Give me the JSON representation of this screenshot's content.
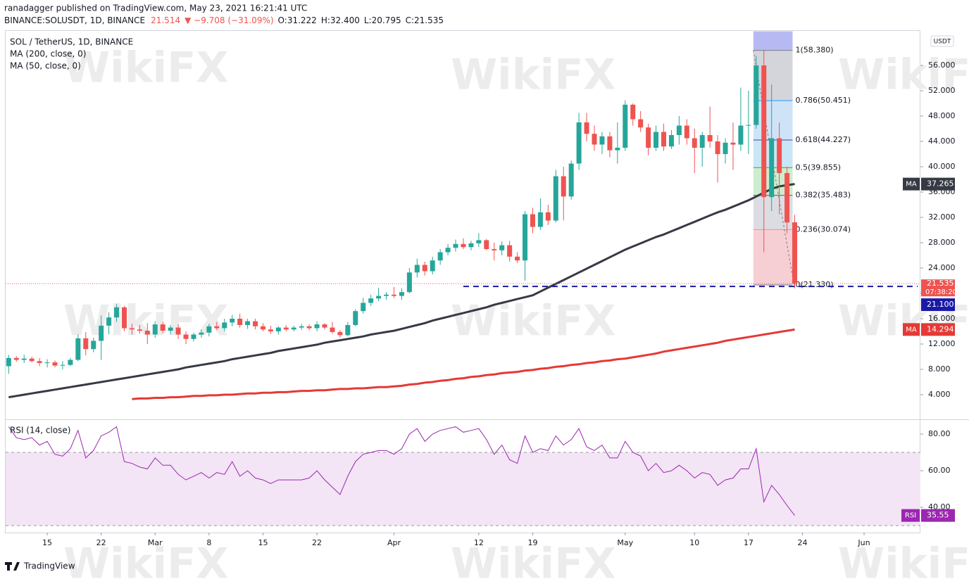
{
  "header": {
    "publisher": "ranadagger published on TradingView.com, May 23, 2021 16:21:41 UTC",
    "symbol": "BINANCE:SOLUSDT, 1D, BINANCE",
    "last": "21.514",
    "change": "▼ −9.708 (−31.09%)",
    "open": "O:31.222",
    "high": "H:32.400",
    "low": "L:20.795",
    "close": "C:21.535"
  },
  "watermark": "WikiFX",
  "logo": "TradingView",
  "chart_data": {
    "type": "candlestick",
    "title": "SOL / TetherUS, 1D, BINANCE",
    "currency": "USDT",
    "up_color": "#26a69a",
    "down_color": "#ef5350",
    "xlim": [
      "2021-02-09",
      "2021-06-08"
    ],
    "xticks": [
      {
        "value": "2021-02-15",
        "label": "15"
      },
      {
        "value": "2021-02-22",
        "label": "22"
      },
      {
        "value": "2021-03-01",
        "label": "Mar"
      },
      {
        "value": "2021-03-08",
        "label": "8"
      },
      {
        "value": "2021-03-15",
        "label": "15"
      },
      {
        "value": "2021-03-22",
        "label": "22"
      },
      {
        "value": "2021-04-01",
        "label": "Apr"
      },
      {
        "value": "2021-04-12",
        "label": "12"
      },
      {
        "value": "2021-04-19",
        "label": "19"
      },
      {
        "value": "2021-05-01",
        "label": "May"
      },
      {
        "value": "2021-05-10",
        "label": "10"
      },
      {
        "value": "2021-05-17",
        "label": "17"
      },
      {
        "value": "2021-05-24",
        "label": "24"
      },
      {
        "value": "2021-06-01",
        "label": "Jun"
      }
    ],
    "ylim": [
      0,
      61.5
    ],
    "yticks": [
      {
        "value": 4,
        "label": "4.000"
      },
      {
        "value": 8,
        "label": "8.000"
      },
      {
        "value": 12,
        "label": "12.000"
      },
      {
        "value": 16,
        "label": "16.000"
      },
      {
        "value": 20,
        "label": "20.000"
      },
      {
        "value": 24,
        "label": "24.000"
      },
      {
        "value": 28,
        "label": "28.000"
      },
      {
        "value": 32,
        "label": "32.000"
      },
      {
        "value": 36,
        "label": "36.000"
      },
      {
        "value": 40,
        "label": "40.000"
      },
      {
        "value": 44,
        "label": "44.000"
      },
      {
        "value": 48,
        "label": "48.000"
      },
      {
        "value": 52,
        "label": "52.000"
      },
      {
        "value": 56,
        "label": "56.000"
      }
    ],
    "x": [
      "2021-02-10",
      "2021-02-11",
      "2021-02-12",
      "2021-02-13",
      "2021-02-14",
      "2021-02-15",
      "2021-02-16",
      "2021-02-17",
      "2021-02-18",
      "2021-02-19",
      "2021-02-20",
      "2021-02-21",
      "2021-02-22",
      "2021-02-23",
      "2021-02-24",
      "2021-02-25",
      "2021-02-26",
      "2021-02-27",
      "2021-02-28",
      "2021-03-01",
      "2021-03-02",
      "2021-03-03",
      "2021-03-04",
      "2021-03-05",
      "2021-03-06",
      "2021-03-07",
      "2021-03-08",
      "2021-03-09",
      "2021-03-10",
      "2021-03-11",
      "2021-03-12",
      "2021-03-13",
      "2021-03-14",
      "2021-03-15",
      "2021-03-16",
      "2021-03-17",
      "2021-03-18",
      "2021-03-19",
      "2021-03-20",
      "2021-03-21",
      "2021-03-22",
      "2021-03-23",
      "2021-03-24",
      "2021-03-25",
      "2021-03-26",
      "2021-03-27",
      "2021-03-28",
      "2021-03-29",
      "2021-03-30",
      "2021-03-31",
      "2021-04-01",
      "2021-04-02",
      "2021-04-03",
      "2021-04-04",
      "2021-04-05",
      "2021-04-06",
      "2021-04-07",
      "2021-04-08",
      "2021-04-09",
      "2021-04-10",
      "2021-04-11",
      "2021-04-12",
      "2021-04-13",
      "2021-04-14",
      "2021-04-15",
      "2021-04-16",
      "2021-04-17",
      "2021-04-18",
      "2021-04-19",
      "2021-04-20",
      "2021-04-21",
      "2021-04-22",
      "2021-04-23",
      "2021-04-24",
      "2021-04-25",
      "2021-04-26",
      "2021-04-27",
      "2021-04-28",
      "2021-04-29",
      "2021-04-30",
      "2021-05-01",
      "2021-05-02",
      "2021-05-03",
      "2021-05-04",
      "2021-05-05",
      "2021-05-06",
      "2021-05-07",
      "2021-05-08",
      "2021-05-09",
      "2021-05-10",
      "2021-05-11",
      "2021-05-12",
      "2021-05-13",
      "2021-05-14",
      "2021-05-15",
      "2021-05-16",
      "2021-05-17",
      "2021-05-18",
      "2021-05-19",
      "2021-05-20",
      "2021-05-21",
      "2021-05-22",
      "2021-05-23"
    ],
    "candles": [
      [
        8.5,
        10.3,
        7.3,
        9.8
      ],
      [
        9.8,
        10.1,
        9.2,
        9.5
      ],
      [
        9.5,
        10.3,
        9.0,
        9.7
      ],
      [
        9.7,
        10.0,
        9.1,
        9.3
      ],
      [
        9.3,
        9.8,
        8.5,
        9.0
      ],
      [
        9.0,
        9.6,
        8.3,
        9.1
      ],
      [
        9.1,
        9.4,
        8.3,
        8.6
      ],
      [
        8.6,
        9.3,
        8.0,
        8.7
      ],
      [
        8.7,
        9.8,
        8.5,
        9.5
      ],
      [
        9.5,
        13.5,
        9.3,
        12.9
      ],
      [
        12.9,
        13.9,
        10.2,
        11.2
      ],
      [
        11.2,
        13.0,
        10.7,
        12.5
      ],
      [
        12.5,
        16.5,
        9.5,
        14.9
      ],
      [
        14.9,
        17.0,
        13.5,
        16.2
      ],
      [
        16.2,
        18.3,
        15.5,
        17.8
      ],
      [
        17.8,
        18.0,
        14.0,
        14.5
      ],
      [
        14.5,
        15.2,
        13.5,
        14.3
      ],
      [
        14.3,
        15.0,
        13.6,
        14.1
      ],
      [
        14.1,
        15.3,
        12.0,
        13.5
      ],
      [
        13.5,
        15.6,
        13.0,
        15.1
      ],
      [
        15.1,
        15.5,
        13.7,
        14.1
      ],
      [
        14.1,
        15.0,
        13.5,
        14.6
      ],
      [
        14.6,
        15.1,
        12.8,
        13.5
      ],
      [
        13.5,
        14.0,
        12.0,
        12.8
      ],
      [
        12.8,
        13.8,
        12.4,
        13.5
      ],
      [
        13.5,
        14.3,
        13.0,
        13.8
      ],
      [
        13.8,
        15.2,
        13.2,
        14.8
      ],
      [
        14.8,
        15.5,
        14.2,
        14.5
      ],
      [
        14.5,
        16.0,
        14.0,
        15.4
      ],
      [
        15.4,
        16.6,
        14.8,
        16.0
      ],
      [
        16.0,
        16.8,
        14.6,
        15.0
      ],
      [
        15.0,
        16.0,
        14.4,
        15.6
      ],
      [
        15.6,
        16.0,
        14.3,
        14.8
      ],
      [
        14.8,
        15.3,
        14.0,
        14.3
      ],
      [
        14.3,
        14.9,
        13.6,
        14.0
      ],
      [
        14.0,
        14.8,
        13.5,
        14.6
      ],
      [
        14.6,
        15.0,
        14.0,
        14.3
      ],
      [
        14.3,
        14.9,
        14.0,
        14.6
      ],
      [
        14.6,
        15.2,
        14.2,
        14.8
      ],
      [
        14.8,
        15.1,
        14.2,
        14.5
      ],
      [
        14.5,
        15.6,
        14.0,
        15.1
      ],
      [
        15.1,
        15.3,
        14.3,
        14.6
      ],
      [
        14.6,
        15.5,
        13.6,
        13.9
      ],
      [
        13.9,
        14.2,
        13.0,
        13.4
      ],
      [
        13.4,
        15.5,
        13.2,
        15.0
      ],
      [
        15.0,
        17.5,
        14.8,
        17.2
      ],
      [
        17.2,
        19.3,
        16.8,
        18.5
      ],
      [
        18.5,
        19.8,
        18.0,
        19.2
      ],
      [
        19.2,
        20.9,
        18.8,
        19.6
      ],
      [
        19.6,
        20.2,
        19.0,
        19.8
      ],
      [
        19.8,
        21.0,
        19.3,
        19.6
      ],
      [
        19.6,
        20.8,
        19.0,
        20.2
      ],
      [
        20.2,
        24.0,
        20.0,
        23.3
      ],
      [
        23.3,
        25.5,
        22.5,
        24.5
      ],
      [
        24.5,
        25.0,
        22.8,
        23.5
      ],
      [
        23.5,
        25.8,
        23.0,
        25.2
      ],
      [
        25.2,
        27.0,
        24.5,
        26.5
      ],
      [
        26.5,
        27.8,
        26.0,
        27.2
      ],
      [
        27.2,
        28.5,
        26.6,
        27.8
      ],
      [
        27.8,
        28.7,
        27.0,
        27.3
      ],
      [
        27.3,
        28.3,
        26.8,
        27.9
      ],
      [
        27.9,
        29.5,
        27.3,
        28.4
      ],
      [
        28.4,
        28.6,
        26.8,
        27.0
      ],
      [
        27.0,
        28.0,
        25.2,
        26.8
      ],
      [
        26.8,
        28.2,
        26.0,
        27.6
      ],
      [
        27.6,
        28.3,
        25.0,
        25.8
      ],
      [
        25.8,
        26.5,
        24.8,
        25.2
      ],
      [
        25.2,
        33.0,
        22.0,
        32.5
      ],
      [
        32.5,
        33.5,
        29.5,
        30.5
      ],
      [
        30.5,
        35.0,
        30.0,
        32.8
      ],
      [
        32.8,
        34.0,
        30.8,
        31.5
      ],
      [
        31.5,
        39.5,
        31.2,
        38.5
      ],
      [
        38.5,
        40.0,
        31.5,
        35.3
      ],
      [
        35.3,
        41.0,
        34.8,
        40.5
      ],
      [
        40.5,
        48.5,
        39.5,
        47.0
      ],
      [
        47.0,
        48.5,
        44.0,
        45.2
      ],
      [
        45.2,
        46.5,
        42.5,
        43.5
      ],
      [
        43.5,
        45.5,
        42.0,
        44.8
      ],
      [
        44.8,
        45.5,
        41.5,
        42.6
      ],
      [
        42.6,
        47.0,
        40.5,
        43.0
      ],
      [
        43.0,
        50.5,
        42.5,
        49.8
      ],
      [
        49.8,
        50.0,
        46.5,
        47.5
      ],
      [
        47.5,
        48.8,
        45.5,
        46.2
      ],
      [
        46.2,
        46.8,
        41.8,
        43.0
      ],
      [
        43.0,
        46.5,
        42.5,
        45.5
      ],
      [
        45.5,
        46.8,
        42.5,
        43.2
      ],
      [
        43.2,
        45.8,
        42.8,
        45.0
      ],
      [
        45.0,
        48.0,
        43.5,
        46.5
      ],
      [
        46.5,
        47.5,
        43.5,
        44.5
      ],
      [
        44.5,
        46.0,
        39.0,
        43.0
      ],
      [
        43.0,
        45.5,
        40.0,
        45.0
      ],
      [
        45.0,
        49.5,
        43.0,
        44.0
      ],
      [
        44.0,
        45.0,
        37.5,
        42.0
      ],
      [
        42.0,
        44.5,
        40.5,
        43.8
      ],
      [
        43.8,
        47.0,
        39.5,
        43.5
      ],
      [
        43.5,
        52.5,
        42.5,
        46.5
      ],
      [
        46.5,
        52.0,
        42.0,
        46.6
      ],
      [
        46.6,
        57.5,
        46.0,
        56.0
      ],
      [
        56.0,
        58.4,
        26.5,
        35.2
      ],
      [
        35.2,
        53.0,
        33.0,
        44.5
      ],
      [
        44.5,
        47.0,
        32.5,
        39.0
      ],
      [
        39.0,
        40.0,
        29.5,
        31.2
      ],
      [
        31.222,
        32.4,
        20.795,
        21.535
      ]
    ],
    "countdown": "07:38:20",
    "series": [
      {
        "name": "MA (200, close, 0)",
        "tag": "MA",
        "color": "#e53935",
        "width": 3,
        "values": [
          null,
          null,
          null,
          null,
          null,
          null,
          null,
          null,
          null,
          null,
          null,
          null,
          null,
          null,
          null,
          null,
          3.3,
          3.4,
          3.4,
          3.5,
          3.5,
          3.6,
          3.6,
          3.7,
          3.8,
          3.8,
          3.9,
          3.9,
          4.0,
          4.0,
          4.1,
          4.2,
          4.2,
          4.3,
          4.3,
          4.4,
          4.4,
          4.5,
          4.6,
          4.6,
          4.7,
          4.7,
          4.8,
          4.9,
          4.9,
          5.0,
          5.0,
          5.1,
          5.2,
          5.2,
          5.3,
          5.4,
          5.6,
          5.7,
          5.9,
          6.0,
          6.2,
          6.3,
          6.5,
          6.6,
          6.8,
          6.9,
          7.1,
          7.2,
          7.4,
          7.5,
          7.6,
          7.8,
          7.9,
          8.1,
          8.2,
          8.4,
          8.5,
          8.7,
          8.8,
          9.0,
          9.1,
          9.3,
          9.4,
          9.6,
          9.7,
          9.9,
          10.1,
          10.3,
          10.5,
          10.8,
          11.0,
          11.2,
          11.4,
          11.6,
          11.8,
          12.0,
          12.2,
          12.5,
          12.7,
          12.9,
          13.1,
          13.3,
          13.5,
          13.7,
          13.9,
          14.1,
          14.294
        ]
      },
      {
        "name": "MA (50, close, 0)",
        "tag": "MA",
        "color": "#363a45",
        "width": 3,
        "values": [
          3.6,
          3.8,
          4.0,
          4.2,
          4.4,
          4.6,
          4.8,
          5.0,
          5.2,
          5.4,
          5.6,
          5.8,
          6.0,
          6.2,
          6.4,
          6.6,
          6.8,
          7.0,
          7.2,
          7.4,
          7.6,
          7.8,
          8.0,
          8.3,
          8.5,
          8.7,
          8.9,
          9.1,
          9.3,
          9.6,
          9.8,
          10.0,
          10.2,
          10.4,
          10.6,
          10.9,
          11.1,
          11.3,
          11.5,
          11.7,
          11.9,
          12.2,
          12.4,
          12.6,
          12.8,
          13.0,
          13.2,
          13.5,
          13.7,
          13.9,
          14.1,
          14.4,
          14.7,
          15.0,
          15.3,
          15.7,
          16.0,
          16.3,
          16.6,
          16.9,
          17.2,
          17.5,
          17.8,
          18.2,
          18.5,
          18.8,
          19.1,
          19.4,
          19.7,
          20.3,
          20.9,
          21.5,
          22.1,
          22.7,
          23.3,
          23.9,
          24.5,
          25.1,
          25.7,
          26.3,
          26.9,
          27.4,
          27.9,
          28.4,
          28.9,
          29.3,
          29.8,
          30.3,
          30.8,
          31.3,
          31.8,
          32.3,
          32.8,
          33.2,
          33.7,
          34.2,
          34.7,
          35.3,
          35.9,
          36.5,
          36.9,
          37.1,
          37.265
        ]
      }
    ],
    "hline": {
      "value": 21.1,
      "label": "21.100",
      "from": "2021-04-10",
      "color": "#1a1aa6"
    },
    "fib": {
      "from": "2021-05-18",
      "to": "2021-05-23",
      "levels": [
        {
          "level": 1,
          "price": 58.38,
          "label": "1(58.380)",
          "color": "#787b86",
          "zone": "#d4d5db"
        },
        {
          "level": 0.786,
          "price": 50.451,
          "label": "0.786(50.451)",
          "color": "#2196f3",
          "zone": "#cfe3f7"
        },
        {
          "level": 0.618,
          "price": 44.227,
          "label": "0.618(44.227)",
          "color": "#4a3f9f",
          "zone": "#c9e6f6"
        },
        {
          "level": 0.5,
          "price": 39.855,
          "label": "0.5(39.855)",
          "color": "#43a047",
          "zone": "#cdeccd"
        },
        {
          "level": 0.382,
          "price": 35.483,
          "label": "0.382(35.483)",
          "color": "#5d606b",
          "zone": "#dcdde2"
        },
        {
          "level": 0.236,
          "price": 30.074,
          "label": "0.236(30.074)",
          "color": "#f28b9b",
          "zone": "#f6cfd4"
        },
        {
          "level": 0,
          "price": 21.33,
          "label": "0(21.330)",
          "color": "#787b86",
          "zone": null
        }
      ],
      "top_zone": "#b7baf2"
    },
    "rsi": {
      "name": "RSI (14, close)",
      "tag": "RSI",
      "color": "#9c27b0",
      "ylim": [
        26.2,
        87.7
      ],
      "yticks": [
        {
          "value": 40,
          "label": "40.00"
        },
        {
          "value": 60,
          "label": "60.00"
        },
        {
          "value": 80,
          "label": "80.00"
        }
      ],
      "band": [
        30,
        70
      ],
      "values": [
        84,
        78,
        77,
        78,
        74,
        76,
        69,
        68,
        72,
        82,
        67,
        71,
        79,
        81,
        84,
        65,
        64,
        62,
        61,
        67,
        63,
        63,
        58,
        55,
        57,
        59,
        56,
        59,
        58,
        65,
        57,
        60,
        56,
        55,
        53,
        55,
        55,
        55,
        55,
        56,
        60,
        55,
        51,
        47,
        57,
        65,
        69,
        70,
        71,
        71,
        69,
        72,
        80,
        83,
        76,
        80,
        82,
        83,
        84,
        81,
        82,
        83,
        77,
        69,
        74,
        66,
        64,
        79,
        70,
        72,
        71,
        79,
        74,
        77,
        83,
        73,
        71,
        74,
        67,
        67,
        76,
        70,
        68,
        60,
        64,
        59,
        60,
        63,
        60,
        56,
        59,
        58,
        52,
        55,
        56,
        61,
        61,
        72,
        43,
        52,
        47,
        41,
        35.55
      ]
    }
  }
}
